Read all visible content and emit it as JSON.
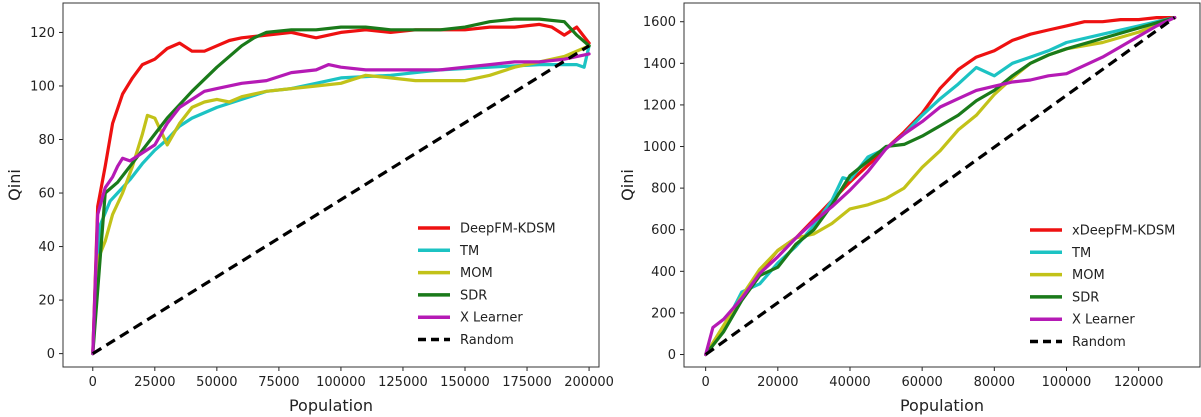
{
  "chart_data": [
    {
      "type": "line",
      "title": "",
      "xlabel": "Population",
      "ylabel": "Qini",
      "xlim": [
        -12000,
        204000
      ],
      "ylim": [
        -5,
        131
      ],
      "xticks": [
        0,
        25000,
        50000,
        75000,
        100000,
        125000,
        150000,
        175000,
        200000
      ],
      "yticks": [
        0,
        20,
        40,
        60,
        80,
        100,
        120
      ],
      "grid": false,
      "legend_position": "lower-right",
      "series": [
        {
          "name": "DeepFM-KDSM",
          "color": "#ee1111",
          "style": "solid",
          "x": [
            0,
            2000,
            5000,
            8000,
            12000,
            16000,
            20000,
            25000,
            30000,
            35000,
            40000,
            45000,
            50000,
            55000,
            60000,
            70000,
            80000,
            90000,
            100000,
            110000,
            120000,
            130000,
            140000,
            150000,
            160000,
            170000,
            180000,
            185000,
            190000,
            195000,
            200000
          ],
          "y": [
            0,
            55,
            70,
            86,
            97,
            103,
            108,
            110,
            114,
            116,
            113,
            113,
            115,
            117,
            118,
            119,
            120,
            118,
            120,
            121,
            120,
            121,
            121,
            121,
            122,
            122,
            123,
            122,
            119,
            122,
            116
          ]
        },
        {
          "name": "TM",
          "color": "#1cc3c3",
          "style": "solid",
          "x": [
            0,
            3000,
            7000,
            10000,
            15000,
            20000,
            25000,
            30000,
            35000,
            40000,
            50000,
            60000,
            70000,
            80000,
            90000,
            100000,
            120000,
            140000,
            160000,
            180000,
            195000,
            198000,
            200000
          ],
          "y": [
            0,
            48,
            57,
            60,
            65,
            71,
            76,
            80,
            85,
            88,
            92,
            95,
            98,
            99,
            101,
            103,
            104,
            106,
            107,
            108,
            108,
            107,
            115
          ]
        },
        {
          "name": "MOM",
          "color": "#c2c219",
          "style": "solid",
          "x": [
            0,
            2000,
            5000,
            8000,
            12000,
            16000,
            20000,
            22000,
            25000,
            28000,
            30000,
            35000,
            40000,
            45000,
            50000,
            55000,
            60000,
            70000,
            80000,
            90000,
            100000,
            110000,
            120000,
            130000,
            140000,
            150000,
            160000,
            170000,
            180000,
            190000,
            200000
          ],
          "y": [
            0,
            35,
            42,
            52,
            60,
            70,
            82,
            89,
            88,
            82,
            78,
            86,
            92,
            94,
            95,
            94,
            96,
            98,
            99,
            100,
            101,
            104,
            103,
            102,
            102,
            102,
            104,
            107,
            109,
            111,
            115
          ]
        },
        {
          "name": "SDR",
          "color": "#1a7a1a",
          "style": "solid",
          "x": [
            0,
            5000,
            10000,
            15000,
            20000,
            25000,
            30000,
            35000,
            40000,
            50000,
            60000,
            65000,
            70000,
            80000,
            90000,
            100000,
            110000,
            120000,
            130000,
            140000,
            150000,
            160000,
            170000,
            180000,
            190000,
            195000,
            200000
          ],
          "y": [
            0,
            60,
            64,
            70,
            76,
            82,
            88,
            93,
            98,
            107,
            115,
            118,
            120,
            121,
            121,
            122,
            122,
            121,
            121,
            121,
            122,
            124,
            125,
            125,
            124,
            119,
            115
          ]
        },
        {
          "name": "X Learner",
          "color": "#b51ab5",
          "style": "solid",
          "x": [
            0,
            2000,
            5000,
            8000,
            10000,
            12000,
            15000,
            20000,
            25000,
            30000,
            35000,
            40000,
            45000,
            50000,
            60000,
            70000,
            80000,
            90000,
            95000,
            100000,
            110000,
            120000,
            130000,
            140000,
            150000,
            160000,
            170000,
            180000,
            190000,
            200000
          ],
          "y": [
            0,
            52,
            62,
            66,
            70,
            73,
            72,
            75,
            78,
            86,
            92,
            95,
            98,
            99,
            101,
            102,
            105,
            106,
            108,
            107,
            106,
            106,
            106,
            106,
            107,
            108,
            109,
            109,
            110,
            112
          ]
        },
        {
          "name": "Random",
          "color": "#000000",
          "style": "dashed",
          "x": [
            0,
            200000
          ],
          "y": [
            0,
            115
          ]
        }
      ]
    },
    {
      "type": "line",
      "title": "",
      "xlabel": "Population",
      "ylabel": "Qini",
      "xlim": [
        -6000,
        137000
      ],
      "ylim": [
        -60,
        1690
      ],
      "xticks": [
        0,
        20000,
        40000,
        60000,
        80000,
        100000,
        120000
      ],
      "yticks": [
        0,
        200,
        400,
        600,
        800,
        1000,
        1200,
        1400,
        1600
      ],
      "grid": false,
      "legend_position": "lower-right",
      "series": [
        {
          "name": "xDeepFM-KDSM",
          "color": "#ee1111",
          "style": "solid",
          "x": [
            0,
            5000,
            10000,
            15000,
            20000,
            25000,
            30000,
            35000,
            40000,
            45000,
            50000,
            55000,
            60000,
            65000,
            70000,
            75000,
            80000,
            85000,
            90000,
            95000,
            100000,
            105000,
            110000,
            115000,
            120000,
            125000,
            130000
          ],
          "y": [
            0,
            130,
            270,
            400,
            500,
            560,
            650,
            740,
            830,
            910,
            990,
            1070,
            1160,
            1280,
            1370,
            1430,
            1460,
            1510,
            1540,
            1560,
            1580,
            1600,
            1600,
            1610,
            1610,
            1620,
            1620
          ]
        },
        {
          "name": "TM",
          "color": "#1cc3c3",
          "style": "solid",
          "x": [
            0,
            5000,
            10000,
            15000,
            20000,
            25000,
            30000,
            35000,
            38000,
            40000,
            45000,
            50000,
            55000,
            60000,
            65000,
            70000,
            75000,
            80000,
            85000,
            90000,
            95000,
            100000,
            110000,
            120000,
            130000
          ],
          "y": [
            0,
            130,
            300,
            340,
            440,
            520,
            620,
            740,
            850,
            840,
            950,
            990,
            1060,
            1150,
            1230,
            1300,
            1380,
            1340,
            1400,
            1430,
            1460,
            1500,
            1540,
            1580,
            1620
          ]
        },
        {
          "name": "MOM",
          "color": "#c2c219",
          "style": "solid",
          "x": [
            0,
            5000,
            10000,
            15000,
            20000,
            25000,
            30000,
            35000,
            40000,
            45000,
            50000,
            55000,
            60000,
            65000,
            70000,
            75000,
            80000,
            85000,
            90000,
            95000,
            100000,
            110000,
            120000,
            130000
          ],
          "y": [
            0,
            140,
            280,
            410,
            500,
            560,
            580,
            630,
            700,
            720,
            750,
            800,
            900,
            980,
            1080,
            1150,
            1250,
            1330,
            1400,
            1440,
            1470,
            1500,
            1550,
            1620
          ]
        },
        {
          "name": "SDR",
          "color": "#1a7a1a",
          "style": "solid",
          "x": [
            0,
            5000,
            10000,
            15000,
            20000,
            25000,
            30000,
            35000,
            40000,
            45000,
            50000,
            55000,
            60000,
            65000,
            70000,
            75000,
            80000,
            85000,
            90000,
            95000,
            100000,
            110000,
            120000,
            130000
          ],
          "y": [
            0,
            110,
            260,
            380,
            420,
            530,
            600,
            720,
            860,
            930,
            1000,
            1010,
            1050,
            1100,
            1150,
            1220,
            1270,
            1340,
            1400,
            1440,
            1470,
            1520,
            1570,
            1620
          ]
        },
        {
          "name": "X Learner",
          "color": "#b51ab5",
          "style": "solid",
          "x": [
            0,
            2000,
            5000,
            10000,
            15000,
            20000,
            25000,
            30000,
            35000,
            40000,
            45000,
            50000,
            55000,
            60000,
            65000,
            70000,
            75000,
            80000,
            85000,
            90000,
            95000,
            100000,
            105000,
            110000,
            115000,
            120000,
            125000,
            130000
          ],
          "y": [
            0,
            130,
            170,
            270,
            390,
            470,
            560,
            640,
            710,
            790,
            880,
            990,
            1060,
            1120,
            1190,
            1230,
            1270,
            1290,
            1310,
            1320,
            1340,
            1350,
            1390,
            1430,
            1480,
            1530,
            1580,
            1620
          ]
        },
        {
          "name": "Random",
          "color": "#000000",
          "style": "dashed",
          "x": [
            0,
            130000
          ],
          "y": [
            0,
            1620
          ]
        }
      ]
    }
  ]
}
